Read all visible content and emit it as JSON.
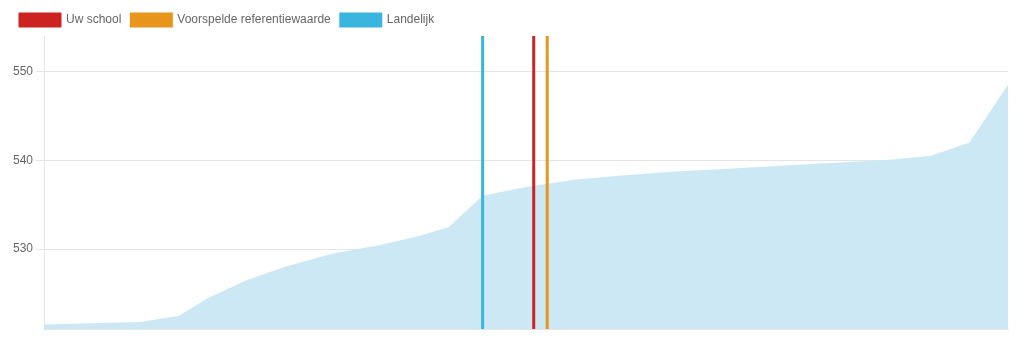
{
  "chart_data": {
    "type": "area",
    "x": [
      0.0,
      0.1,
      0.14,
      0.17,
      0.21,
      0.25,
      0.3,
      0.35,
      0.39,
      0.42,
      0.455,
      0.5,
      0.55,
      0.6,
      0.65,
      0.7,
      0.75,
      0.8,
      0.85,
      0.88,
      0.92,
      0.96,
      1.0
    ],
    "values": [
      521.5,
      521.8,
      522.5,
      524.5,
      526.5,
      528.0,
      529.5,
      530.5,
      531.5,
      532.5,
      536.0,
      537.0,
      537.8,
      538.3,
      538.7,
      539.0,
      539.3,
      539.6,
      539.9,
      540.1,
      540.5,
      542.0,
      548.5
    ],
    "color": "#cce8f4",
    "vlines": [
      {
        "name": "Uw school",
        "color": "#cc2222",
        "x": 0.508
      },
      {
        "name": "Voorspelde referentiewaarde",
        "color": "#e8951e",
        "x": 0.522
      },
      {
        "name": "Landelijk",
        "color": "#3ab5e0",
        "x": 0.455
      }
    ],
    "xlim": [
      0,
      1.0
    ],
    "ylim": [
      521.0,
      554.0
    ],
    "yticks": [
      530,
      540,
      550
    ],
    "grid": true,
    "legend": "top",
    "tick_labels": "y"
  }
}
